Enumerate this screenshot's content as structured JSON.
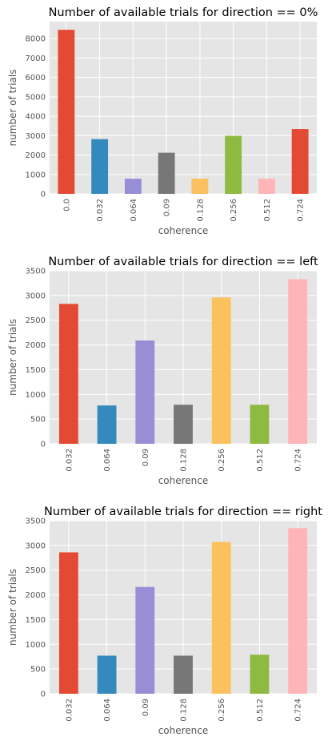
{
  "chart_data": [
    {
      "type": "bar",
      "title": "Number of available trials for direction == 0%",
      "xlabel": "coherence",
      "ylabel": "number of trials",
      "categories": [
        "0.0",
        "0.032",
        "0.064",
        "0.09",
        "0.128",
        "0.256",
        "0.512",
        "0.724"
      ],
      "values": [
        8450,
        2820,
        780,
        2120,
        780,
        2990,
        780,
        3340
      ],
      "colors": [
        "#E24A33",
        "#348ABD",
        "#988ED5",
        "#777777",
        "#FBC15E",
        "#8EBA42",
        "#FFB5B8",
        "#E24A33"
      ],
      "ylim": [
        0,
        8872
      ],
      "yticks": [
        0,
        1000,
        2000,
        3000,
        4000,
        5000,
        6000,
        7000,
        8000
      ],
      "grid": true
    },
    {
      "type": "bar",
      "title": "Number of available trials for direction == left",
      "xlabel": "coherence",
      "ylabel": "number of trials",
      "categories": [
        "0.032",
        "0.064",
        "0.09",
        "0.128",
        "0.256",
        "0.512",
        "0.724"
      ],
      "values": [
        2830,
        775,
        2090,
        790,
        2960,
        790,
        3330
      ],
      "colors": [
        "#E24A33",
        "#348ABD",
        "#988ED5",
        "#777777",
        "#FBC15E",
        "#8EBA42",
        "#FFB5B8"
      ],
      "ylim": [
        0,
        3500
      ],
      "yticks": [
        0,
        500,
        1000,
        1500,
        2000,
        2500,
        3000,
        3500
      ],
      "grid": true
    },
    {
      "type": "bar",
      "title": "Number of available trials for direction == right",
      "xlabel": "coherence",
      "ylabel": "number of trials",
      "categories": [
        "0.032",
        "0.064",
        "0.09",
        "0.128",
        "0.256",
        "0.512",
        "0.724"
      ],
      "values": [
        2860,
        770,
        2160,
        770,
        3070,
        790,
        3350
      ],
      "colors": [
        "#E24A33",
        "#348ABD",
        "#988ED5",
        "#777777",
        "#FBC15E",
        "#8EBA42",
        "#FFB5B8"
      ],
      "ylim": [
        0,
        3500
      ],
      "yticks": [
        0,
        500,
        1000,
        1500,
        2000,
        2500,
        3000,
        3500
      ],
      "grid": true
    }
  ]
}
